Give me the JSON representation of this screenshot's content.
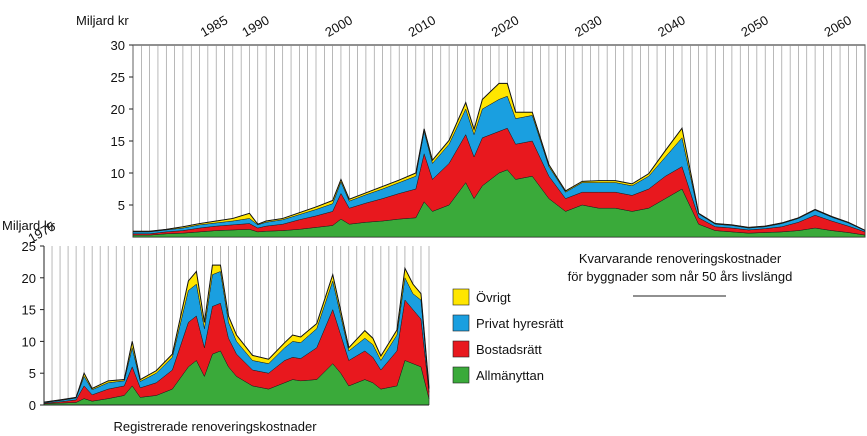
{
  "chart_data": [
    {
      "type": "area",
      "stacked": true,
      "ylabel": "Miljard kr",
      "ylim": [
        0,
        30
      ],
      "y_ticks": [
        5,
        10,
        15,
        20,
        25,
        30
      ],
      "xlim": [
        1975,
        2063
      ],
      "x_ticks": [
        1985,
        1990,
        2000,
        2010,
        2020,
        2030,
        2040,
        2050,
        2060
      ],
      "grid": "vertical",
      "caption_lines": [
        "Kvarvarande renoveringskostnader",
        "för byggnader som når 50 års livslängd"
      ],
      "x": [
        1975,
        1977,
        1979,
        1981,
        1983,
        1985,
        1987,
        1989,
        1990,
        1991,
        1993,
        1995,
        1997,
        1999,
        2000,
        2001,
        2003,
        2005,
        2007,
        2009,
        2010,
        2011,
        2013,
        2015,
        2016,
        2017,
        2019,
        2020,
        2021,
        2023,
        2025,
        2027,
        2029,
        2031,
        2033,
        2035,
        2037,
        2039,
        2041,
        2043,
        2045,
        2047,
        2049,
        2051,
        2053,
        2055,
        2057,
        2059,
        2061,
        2063
      ],
      "series": [
        {
          "name": "Allmänyttan",
          "color": "#3aaa3a",
          "values": [
            0.3,
            0.3,
            0.5,
            0.6,
            0.8,
            1.0,
            1.1,
            1.2,
            0.8,
            0.9,
            1.0,
            1.2,
            1.5,
            1.8,
            2.8,
            2.0,
            2.3,
            2.5,
            2.8,
            3.0,
            5.5,
            4.0,
            5.0,
            8.5,
            6.0,
            8.0,
            10.0,
            10.5,
            9.0,
            9.5,
            6.0,
            4.0,
            5.0,
            4.5,
            4.5,
            4.0,
            4.5,
            6.0,
            7.5,
            2.0,
            1.0,
            0.8,
            0.6,
            0.7,
            0.8,
            1.0,
            1.4,
            1.0,
            0.7,
            0.3
          ]
        },
        {
          "name": "Bostadsrätt",
          "color": "#e8181e",
          "values": [
            0.2,
            0.2,
            0.3,
            0.4,
            0.6,
            0.7,
            0.8,
            0.9,
            0.6,
            0.8,
            1.0,
            1.5,
            1.8,
            2.2,
            4.0,
            2.5,
            3.0,
            3.5,
            4.0,
            4.5,
            7.5,
            5.0,
            6.5,
            7.5,
            6.5,
            7.5,
            6.5,
            6.5,
            5.5,
            5.5,
            3.5,
            2.0,
            2.0,
            2.5,
            2.5,
            2.5,
            3.0,
            3.5,
            3.5,
            1.0,
            0.6,
            0.6,
            0.5,
            0.6,
            0.8,
            1.3,
            2.0,
            1.5,
            1.0,
            0.5
          ]
        },
        {
          "name": "Privat hyresrätt",
          "color": "#1a9fe0",
          "values": [
            0.3,
            0.3,
            0.3,
            0.4,
            0.5,
            0.5,
            0.6,
            0.8,
            0.5,
            0.6,
            0.7,
            0.8,
            1.0,
            1.2,
            1.8,
            1.1,
            1.3,
            1.5,
            1.7,
            2.0,
            3.5,
            2.5,
            3.0,
            4.0,
            3.5,
            4.5,
            5.0,
            5.0,
            4.0,
            4.0,
            1.5,
            1.0,
            1.5,
            1.5,
            1.5,
            1.5,
            2.0,
            3.0,
            4.5,
            0.6,
            0.4,
            0.4,
            0.3,
            0.3,
            0.5,
            0.6,
            0.8,
            0.6,
            0.5,
            0.2
          ]
        },
        {
          "name": "Övrigt",
          "color": "#ffe600",
          "values": [
            0.1,
            0.1,
            0.1,
            0.2,
            0.2,
            0.3,
            0.4,
            0.8,
            0.1,
            0.2,
            0.2,
            0.3,
            0.4,
            0.5,
            0.4,
            0.3,
            0.3,
            0.4,
            0.4,
            0.5,
            0.4,
            0.5,
            0.6,
            1.0,
            0.8,
            1.5,
            2.5,
            2.0,
            1.0,
            0.5,
            0.3,
            0.2,
            0.2,
            0.3,
            0.3,
            0.3,
            0.4,
            1.0,
            1.5,
            0.1,
            0.1,
            0.1,
            0.1,
            0.1,
            0.1,
            0.1,
            0.1,
            0.1,
            0.1,
            0.05
          ]
        }
      ]
    },
    {
      "type": "area",
      "stacked": true,
      "ylabel": "Miljard kr",
      "ylim": [
        0,
        25
      ],
      "y_ticks": [
        0,
        5,
        10,
        15,
        20,
        25
      ],
      "xlim": [
        1975,
        2023
      ],
      "x_ticks": [
        1975
      ],
      "grid": "vertical",
      "caption": "Registrerade renoveringskostnader",
      "x": [
        1975,
        1977,
        1979,
        1980,
        1981,
        1983,
        1985,
        1986,
        1987,
        1989,
        1991,
        1993,
        1994,
        1995,
        1996,
        1997,
        1998,
        1999,
        2001,
        2003,
        2005,
        2006,
        2007,
        2009,
        2011,
        2012,
        2013,
        2015,
        2016,
        2017,
        2019,
        2020,
        2021,
        2022,
        2023
      ],
      "series": [
        {
          "name": "Allmänyttan",
          "color": "#3aaa3a",
          "values": [
            0.2,
            0.3,
            0.4,
            1.0,
            0.6,
            1.0,
            1.5,
            3.0,
            1.2,
            1.5,
            2.5,
            6.0,
            7.0,
            4.5,
            8.0,
            8.5,
            6.0,
            4.5,
            3.0,
            2.5,
            3.5,
            4.0,
            3.8,
            4.0,
            6.5,
            5.0,
            3.0,
            4.0,
            3.5,
            2.5,
            3.0,
            7.0,
            6.5,
            6.0,
            1.0
          ]
        },
        {
          "name": "Bostadsrätt",
          "color": "#e8181e",
          "values": [
            0.1,
            0.2,
            0.4,
            2.0,
            1.0,
            1.5,
            1.5,
            3.0,
            1.5,
            2.0,
            3.0,
            7.0,
            7.0,
            4.5,
            7.5,
            7.5,
            4.5,
            3.5,
            2.5,
            2.5,
            3.5,
            3.5,
            3.5,
            5.0,
            8.5,
            6.0,
            4.0,
            4.5,
            4.0,
            3.0,
            5.5,
            9.5,
            8.5,
            7.5,
            1.0
          ]
        },
        {
          "name": "Privat hyresrätt",
          "color": "#1a9fe0",
          "values": [
            0.1,
            0.2,
            0.3,
            1.5,
            0.8,
            1.0,
            0.8,
            3.0,
            1.0,
            1.5,
            2.0,
            5.0,
            5.0,
            3.0,
            5.0,
            5.0,
            2.5,
            2.0,
            1.5,
            1.5,
            2.0,
            2.5,
            2.5,
            3.0,
            4.5,
            3.0,
            1.5,
            2.0,
            2.0,
            1.5,
            2.5,
            3.5,
            2.5,
            3.0,
            0.5
          ]
        },
        {
          "name": "Övrigt",
          "color": "#ffe600",
          "values": [
            0.05,
            0.1,
            0.1,
            0.5,
            0.2,
            0.3,
            0.2,
            1.0,
            0.3,
            0.4,
            0.5,
            1.5,
            2.0,
            1.0,
            1.5,
            1.0,
            1.0,
            1.0,
            0.8,
            0.7,
            0.8,
            1.0,
            0.9,
            0.8,
            1.0,
            0.8,
            0.5,
            1.2,
            1.0,
            0.7,
            0.8,
            1.5,
            1.5,
            1.0,
            0.2
          ]
        }
      ]
    }
  ],
  "legend": [
    {
      "label": "Övrigt",
      "color": "#ffe600"
    },
    {
      "label": "Privat hyresrätt",
      "color": "#1a9fe0"
    },
    {
      "label": "Bostadsrätt",
      "color": "#e8181e"
    },
    {
      "label": "Allmänyttan",
      "color": "#3aaa3a"
    }
  ]
}
